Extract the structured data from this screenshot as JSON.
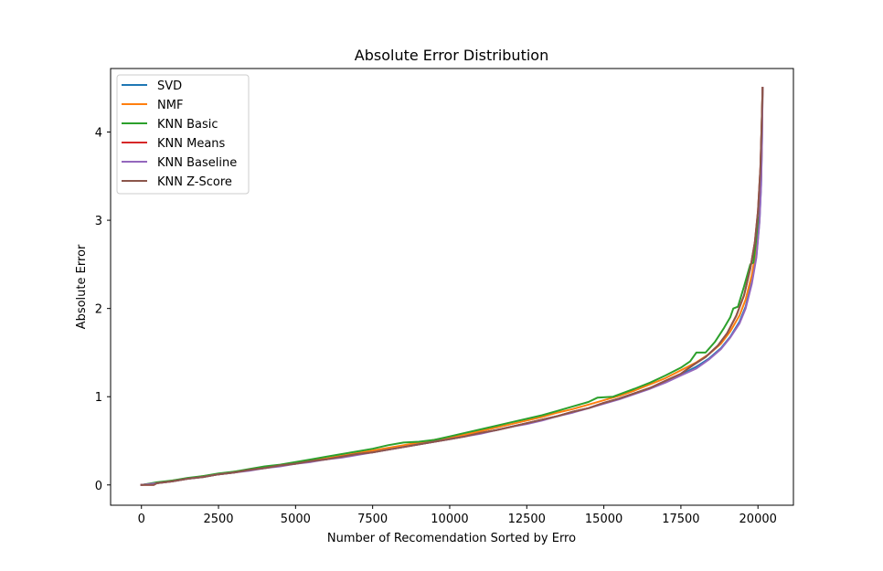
{
  "chart_data": {
    "type": "line",
    "title": "Absolute Error Distribution",
    "xlabel": "Number of Recomendation Sorted by Erro",
    "ylabel": "Absolute Error",
    "xlim": [
      -1000,
      21150
    ],
    "ylim": [
      -0.23,
      4.72
    ],
    "xticks": [
      0,
      2500,
      5000,
      7500,
      10000,
      12500,
      15000,
      17500,
      20000
    ],
    "xtick_labels": [
      "0",
      "2500",
      "5000",
      "7500",
      "10000",
      "12500",
      "15000",
      "17500",
      "20000"
    ],
    "yticks": [
      0,
      1,
      2,
      3,
      4
    ],
    "ytick_labels": [
      "0",
      "1",
      "2",
      "3",
      "4"
    ],
    "grid": false,
    "legend": "top-left",
    "series": [
      {
        "name": "SVD",
        "color": "#1f77b4",
        "x": [
          0,
          500,
          1000,
          1500,
          2000,
          2500,
          3000,
          3500,
          4000,
          4500,
          5000,
          5500,
          6000,
          6500,
          7000,
          7500,
          8000,
          8500,
          9000,
          9500,
          10000,
          10500,
          11000,
          11500,
          12000,
          12500,
          13000,
          13500,
          14000,
          14500,
          15000,
          15500,
          16000,
          16500,
          17000,
          17500,
          18000,
          18400,
          18800,
          19100,
          19400,
          19600,
          19800,
          19950,
          20050,
          20100,
          20130,
          20150
        ],
        "y": [
          0.0,
          0.02,
          0.04,
          0.07,
          0.09,
          0.12,
          0.14,
          0.17,
          0.19,
          0.22,
          0.24,
          0.27,
          0.29,
          0.32,
          0.35,
          0.37,
          0.4,
          0.43,
          0.46,
          0.49,
          0.52,
          0.55,
          0.59,
          0.62,
          0.66,
          0.7,
          0.74,
          0.78,
          0.83,
          0.87,
          0.93,
          0.98,
          1.04,
          1.1,
          1.17,
          1.25,
          1.34,
          1.43,
          1.55,
          1.68,
          1.85,
          2.02,
          2.3,
          2.6,
          3.0,
          3.4,
          3.9,
          4.5
        ]
      },
      {
        "name": "NMF",
        "color": "#ff7f0e",
        "x": [
          0,
          500,
          1000,
          1500,
          2000,
          2500,
          3000,
          3500,
          4000,
          4500,
          5000,
          5500,
          6000,
          6500,
          7000,
          7500,
          8000,
          8500,
          9000,
          9500,
          10000,
          10500,
          11000,
          11500,
          12000,
          12500,
          13000,
          13500,
          14000,
          14500,
          15000,
          15500,
          16000,
          16500,
          17000,
          17500,
          18000,
          18400,
          18800,
          19100,
          19400,
          19600,
          19800,
          19950,
          20050,
          20100,
          20130,
          20150
        ],
        "y": [
          0.0,
          0.02,
          0.05,
          0.07,
          0.1,
          0.12,
          0.15,
          0.17,
          0.2,
          0.22,
          0.25,
          0.28,
          0.3,
          0.33,
          0.36,
          0.39,
          0.42,
          0.45,
          0.48,
          0.51,
          0.54,
          0.57,
          0.61,
          0.65,
          0.69,
          0.73,
          0.77,
          0.82,
          0.86,
          0.91,
          0.96,
          1.01,
          1.07,
          1.14,
          1.21,
          1.3,
          1.39,
          1.48,
          1.6,
          1.74,
          1.92,
          2.1,
          2.38,
          2.68,
          3.05,
          3.45,
          3.95,
          4.5
        ]
      },
      {
        "name": "KNN Basic",
        "color": "#2ca02c",
        "x": [
          0,
          500,
          1000,
          1500,
          2000,
          2500,
          3000,
          3500,
          4000,
          4500,
          5000,
          5500,
          6000,
          6500,
          7000,
          7500,
          8000,
          8500,
          9000,
          9500,
          10000,
          10500,
          11000,
          11500,
          12000,
          12500,
          13000,
          13500,
          14000,
          14500,
          14800,
          15300,
          15600,
          16000,
          16500,
          17000,
          17500,
          17800,
          18000,
          18300,
          18600,
          18900,
          19100,
          19200,
          19350,
          19550,
          19750,
          19850,
          19950,
          20000,
          20050,
          20100,
          20150
        ],
        "y": [
          0.0,
          0.03,
          0.05,
          0.08,
          0.1,
          0.13,
          0.15,
          0.18,
          0.21,
          0.23,
          0.26,
          0.29,
          0.32,
          0.35,
          0.38,
          0.41,
          0.45,
          0.48,
          0.49,
          0.51,
          0.55,
          0.59,
          0.63,
          0.67,
          0.71,
          0.75,
          0.79,
          0.84,
          0.89,
          0.94,
          0.99,
          1.0,
          1.04,
          1.09,
          1.16,
          1.24,
          1.33,
          1.4,
          1.5,
          1.5,
          1.62,
          1.78,
          1.9,
          2.0,
          2.02,
          2.25,
          2.5,
          2.52,
          2.8,
          3.0,
          3.05,
          3.8,
          4.5
        ]
      },
      {
        "name": "KNN Means",
        "color": "#d62728",
        "x": [
          0,
          400,
          500,
          1000,
          1500,
          2000,
          2500,
          3000,
          3500,
          4000,
          4500,
          5000,
          5500,
          6000,
          6500,
          7000,
          7500,
          8000,
          8500,
          9000,
          9500,
          10000,
          10500,
          11000,
          11500,
          12000,
          12500,
          13000,
          13500,
          14000,
          14500,
          15000,
          15500,
          16000,
          16500,
          17000,
          17500,
          17900,
          18300,
          18700,
          19000,
          19300,
          19550,
          19750,
          19900,
          20000,
          20080,
          20120,
          20150
        ],
        "y": [
          0.0,
          0.0,
          0.02,
          0.04,
          0.07,
          0.09,
          0.12,
          0.14,
          0.17,
          0.19,
          0.22,
          0.24,
          0.27,
          0.29,
          0.32,
          0.35,
          0.37,
          0.4,
          0.43,
          0.46,
          0.49,
          0.52,
          0.55,
          0.59,
          0.62,
          0.66,
          0.7,
          0.74,
          0.78,
          0.83,
          0.87,
          0.93,
          0.98,
          1.04,
          1.1,
          1.18,
          1.26,
          1.36,
          1.45,
          1.58,
          1.72,
          1.92,
          2.15,
          2.45,
          2.75,
          3.1,
          3.6,
          4.1,
          4.5
        ]
      },
      {
        "name": "KNN Baseline",
        "color": "#9467bd",
        "x": [
          0,
          500,
          1000,
          1500,
          2000,
          2500,
          3000,
          3500,
          4000,
          4500,
          5000,
          5500,
          6000,
          6500,
          7000,
          7500,
          8000,
          8500,
          9000,
          9500,
          10000,
          10500,
          11000,
          11500,
          12000,
          12500,
          13000,
          13500,
          14000,
          14500,
          15000,
          15500,
          16000,
          16500,
          17000,
          17500,
          18000,
          18400,
          18800,
          19100,
          19400,
          19600,
          19800,
          19950,
          20050,
          20100,
          20130,
          20150
        ],
        "y": [
          0.0,
          0.02,
          0.04,
          0.07,
          0.09,
          0.12,
          0.14,
          0.16,
          0.19,
          0.21,
          0.24,
          0.26,
          0.29,
          0.31,
          0.34,
          0.37,
          0.4,
          0.43,
          0.46,
          0.49,
          0.52,
          0.55,
          0.58,
          0.62,
          0.66,
          0.69,
          0.73,
          0.78,
          0.82,
          0.87,
          0.92,
          0.97,
          1.03,
          1.09,
          1.16,
          1.24,
          1.32,
          1.42,
          1.54,
          1.67,
          1.83,
          2.0,
          2.28,
          2.58,
          2.98,
          3.38,
          3.88,
          4.5
        ]
      },
      {
        "name": "KNN Z-Score",
        "color": "#8c564b",
        "x": [
          0,
          400,
          500,
          1000,
          1500,
          2000,
          2500,
          3000,
          3500,
          4000,
          4500,
          5000,
          5500,
          6000,
          6500,
          7000,
          7500,
          8000,
          8500,
          9000,
          9500,
          10000,
          10500,
          11000,
          11500,
          12000,
          12500,
          13000,
          13500,
          14000,
          14500,
          15000,
          15500,
          16000,
          16500,
          17000,
          17500,
          17900,
          18300,
          18700,
          19000,
          19300,
          19550,
          19750,
          19900,
          20000,
          20080,
          20120,
          20150
        ],
        "y": [
          0.0,
          0.0,
          0.02,
          0.04,
          0.07,
          0.09,
          0.12,
          0.14,
          0.17,
          0.19,
          0.22,
          0.24,
          0.27,
          0.29,
          0.32,
          0.35,
          0.37,
          0.4,
          0.43,
          0.46,
          0.49,
          0.52,
          0.55,
          0.59,
          0.62,
          0.66,
          0.7,
          0.74,
          0.78,
          0.83,
          0.87,
          0.93,
          0.98,
          1.04,
          1.1,
          1.18,
          1.26,
          1.36,
          1.45,
          1.58,
          1.72,
          1.92,
          2.15,
          2.45,
          2.75,
          3.1,
          3.6,
          4.1,
          4.5
        ]
      }
    ]
  }
}
